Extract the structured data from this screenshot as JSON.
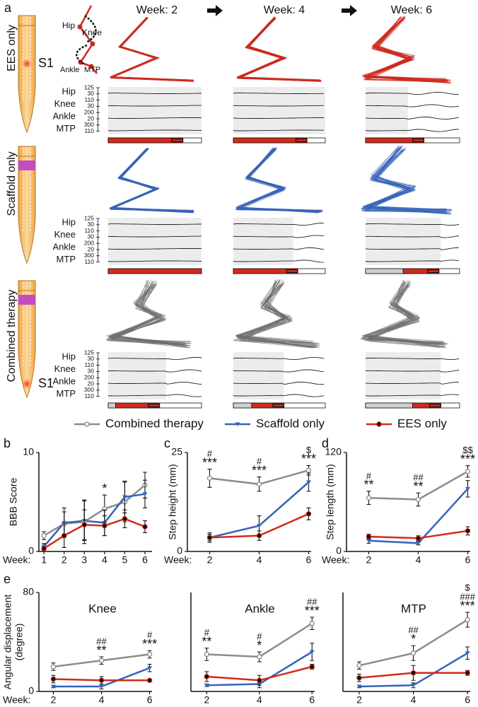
{
  "panel_a": {
    "label": "a",
    "weeks": [
      "Week: 2",
      "Week: 4",
      "Week: 6"
    ],
    "site": "S1",
    "rows": [
      {
        "title": "EES only",
        "color": "#cc2a1e"
      },
      {
        "title": "Scaffold only",
        "color": "#3763b8"
      },
      {
        "title": "Combined therapy",
        "color": "#6e6e6e"
      }
    ],
    "trace_labels": [
      "Hip",
      "Knee",
      "Ankle",
      "MTP"
    ],
    "trace_scale": [
      125,
      30,
      110,
      30,
      200,
      20,
      300,
      110
    ]
  },
  "chart_data": [
    {
      "type": "line",
      "label": "b",
      "ylabel": "BBB Score",
      "xlabel": "Week:",
      "x": [
        1,
        2,
        3,
        4,
        5,
        6
      ],
      "xlim": [
        0.75,
        6.35
      ],
      "xticks": [
        1,
        2,
        3,
        4,
        5,
        6
      ],
      "ylim": [
        0,
        10
      ],
      "yticks": [
        0,
        10
      ],
      "series": [
        {
          "name": "Combined therapy",
          "color": "#8c8c8c",
          "marker": "open-circle",
          "values": [
            1.6,
            2.8,
            3.0,
            4.3,
            5.0,
            6.7
          ],
          "errors": [
            0.4,
            1.2,
            2.2,
            1.4,
            2.0,
            1.3
          ]
        },
        {
          "name": "Scaffold only",
          "color": "#3763b8",
          "marker": "triangle",
          "values": [
            0.5,
            2.9,
            3.1,
            2.9,
            5.5,
            5.8
          ],
          "errors": [
            0.3,
            1.5,
            2.0,
            1.3,
            1.6,
            1.4
          ]
        },
        {
          "name": "EES only",
          "color": "#d42a1c",
          "marker": "dot",
          "values": [
            0.3,
            1.6,
            2.7,
            2.6,
            3.3,
            2.5
          ],
          "errors": [
            0.2,
            1.2,
            1.5,
            1.0,
            0.9,
            0.6
          ]
        }
      ],
      "annotations": [
        {
          "x": 4,
          "lines": [
            "*"
          ]
        }
      ]
    },
    {
      "type": "line",
      "label": "c",
      "ylabel": "Step height (mm)",
      "xlabel": "Week:",
      "x": [
        2,
        4,
        6
      ],
      "xlim": [
        1.1,
        6.1
      ],
      "xticks": [
        2,
        4,
        6
      ],
      "ylim": [
        0,
        25
      ],
      "yticks": [
        0,
        25
      ],
      "series": [
        {
          "color": "#8c8c8c",
          "marker": "open-circle",
          "values": [
            18.5,
            17,
            20.5
          ],
          "errors": [
            2.3,
            1.8,
            1.2
          ]
        },
        {
          "color": "#3763b8",
          "marker": "triangle",
          "values": [
            3.5,
            6.5,
            17.5
          ],
          "errors": [
            1.2,
            2.5,
            2.3
          ]
        },
        {
          "color": "#d42a1c",
          "marker": "dot",
          "values": [
            3.5,
            4,
            9.5
          ],
          "errors": [
            0.8,
            1.2,
            1.5
          ]
        }
      ],
      "annotations": [
        {
          "x": 2,
          "lines": [
            "#",
            "***"
          ]
        },
        {
          "x": 4,
          "lines": [
            "#",
            "***"
          ]
        },
        {
          "x": 6,
          "lines": [
            "$",
            "***"
          ]
        }
      ]
    },
    {
      "type": "line",
      "label": "d",
      "ylabel": "Step length (mm)",
      "xlabel": "Week:",
      "x": [
        2,
        4,
        6
      ],
      "xlim": [
        1.1,
        6.1
      ],
      "xticks": [
        2,
        4,
        6
      ],
      "ylim": [
        0,
        120
      ],
      "yticks": [
        0,
        120
      ],
      "series": [
        {
          "color": "#8c8c8c",
          "marker": "open-circle",
          "values": [
            65,
            63,
            97
          ],
          "errors": [
            8,
            8,
            7
          ]
        },
        {
          "color": "#3763b8",
          "marker": "triangle",
          "values": [
            13,
            10,
            76
          ],
          "errors": [
            3,
            2,
            10
          ]
        },
        {
          "color": "#d42a1c",
          "marker": "dot",
          "values": [
            18,
            16,
            25
          ],
          "errors": [
            3,
            3,
            5
          ]
        }
      ],
      "annotations": [
        {
          "x": 2,
          "lines": [
            "#",
            "**"
          ]
        },
        {
          "x": 4,
          "lines": [
            "##",
            "**"
          ]
        },
        {
          "x": 6,
          "lines": [
            "$$",
            "***"
          ]
        }
      ]
    },
    {
      "type": "line",
      "label": "e",
      "ylabel": [
        "Angular displacement",
        "(degree)"
      ],
      "xlabel": "Week:",
      "x": [
        2,
        4,
        6
      ],
      "xlim": [
        1.4,
        6.1
      ],
      "xticks": [
        2,
        4,
        6
      ],
      "ylim": [
        0,
        80
      ],
      "yticks": [
        0,
        80
      ],
      "panels": [
        {
          "title": "Knee",
          "series": [
            {
              "color": "#8c8c8c",
              "marker": "open-circle",
              "values": [
                20,
                25,
                30
              ],
              "errors": [
                3,
                3,
                3
              ]
            },
            {
              "color": "#3763b8",
              "marker": "triangle",
              "values": [
                4,
                4,
                19
              ],
              "errors": [
                1,
                2,
                3
              ]
            },
            {
              "color": "#d42a1c",
              "marker": "dot",
              "values": [
                10,
                9,
                9
              ],
              "errors": [
                3,
                3,
                1
              ]
            }
          ],
          "annotations": [
            {
              "x": 4,
              "lines": [
                "##",
                "**"
              ]
            },
            {
              "x": 6,
              "lines": [
                "#",
                "***"
              ]
            }
          ]
        },
        {
          "title": "Ankle",
          "series": [
            {
              "color": "#8c8c8c",
              "marker": "open-circle",
              "values": [
                30,
                28,
                55
              ],
              "errors": [
                5,
                4,
                5
              ]
            },
            {
              "color": "#3763b8",
              "marker": "triangle",
              "values": [
                5,
                6,
                32
              ],
              "errors": [
                1,
                3,
                7
              ]
            },
            {
              "color": "#d42a1c",
              "marker": "dot",
              "values": [
                12,
                9,
                20
              ],
              "errors": [
                4,
                4,
                2
              ]
            }
          ],
          "annotations": [
            {
              "x": 2,
              "lines": [
                "#",
                "**"
              ]
            },
            {
              "x": 4,
              "lines": [
                "#",
                "*"
              ]
            },
            {
              "x": 6,
              "lines": [
                "##",
                "***"
              ]
            }
          ]
        },
        {
          "title": "MTP",
          "series": [
            {
              "color": "#8c8c8c",
              "marker": "open-circle",
              "values": [
                21,
                31,
                58
              ],
              "errors": [
                3,
                6,
                6
              ]
            },
            {
              "color": "#3763b8",
              "marker": "triangle",
              "values": [
                4,
                5,
                31
              ],
              "errors": [
                1,
                2,
                5
              ]
            },
            {
              "color": "#d42a1c",
              "marker": "dot",
              "values": [
                11,
                15,
                15
              ],
              "errors": [
                3,
                6,
                2
              ]
            }
          ],
          "annotations": [
            {
              "x": 4,
              "lines": [
                "##",
                "*"
              ]
            },
            {
              "x": 6,
              "lines": [
                "$",
                "###",
                "***"
              ]
            }
          ]
        }
      ]
    }
  ]
}
